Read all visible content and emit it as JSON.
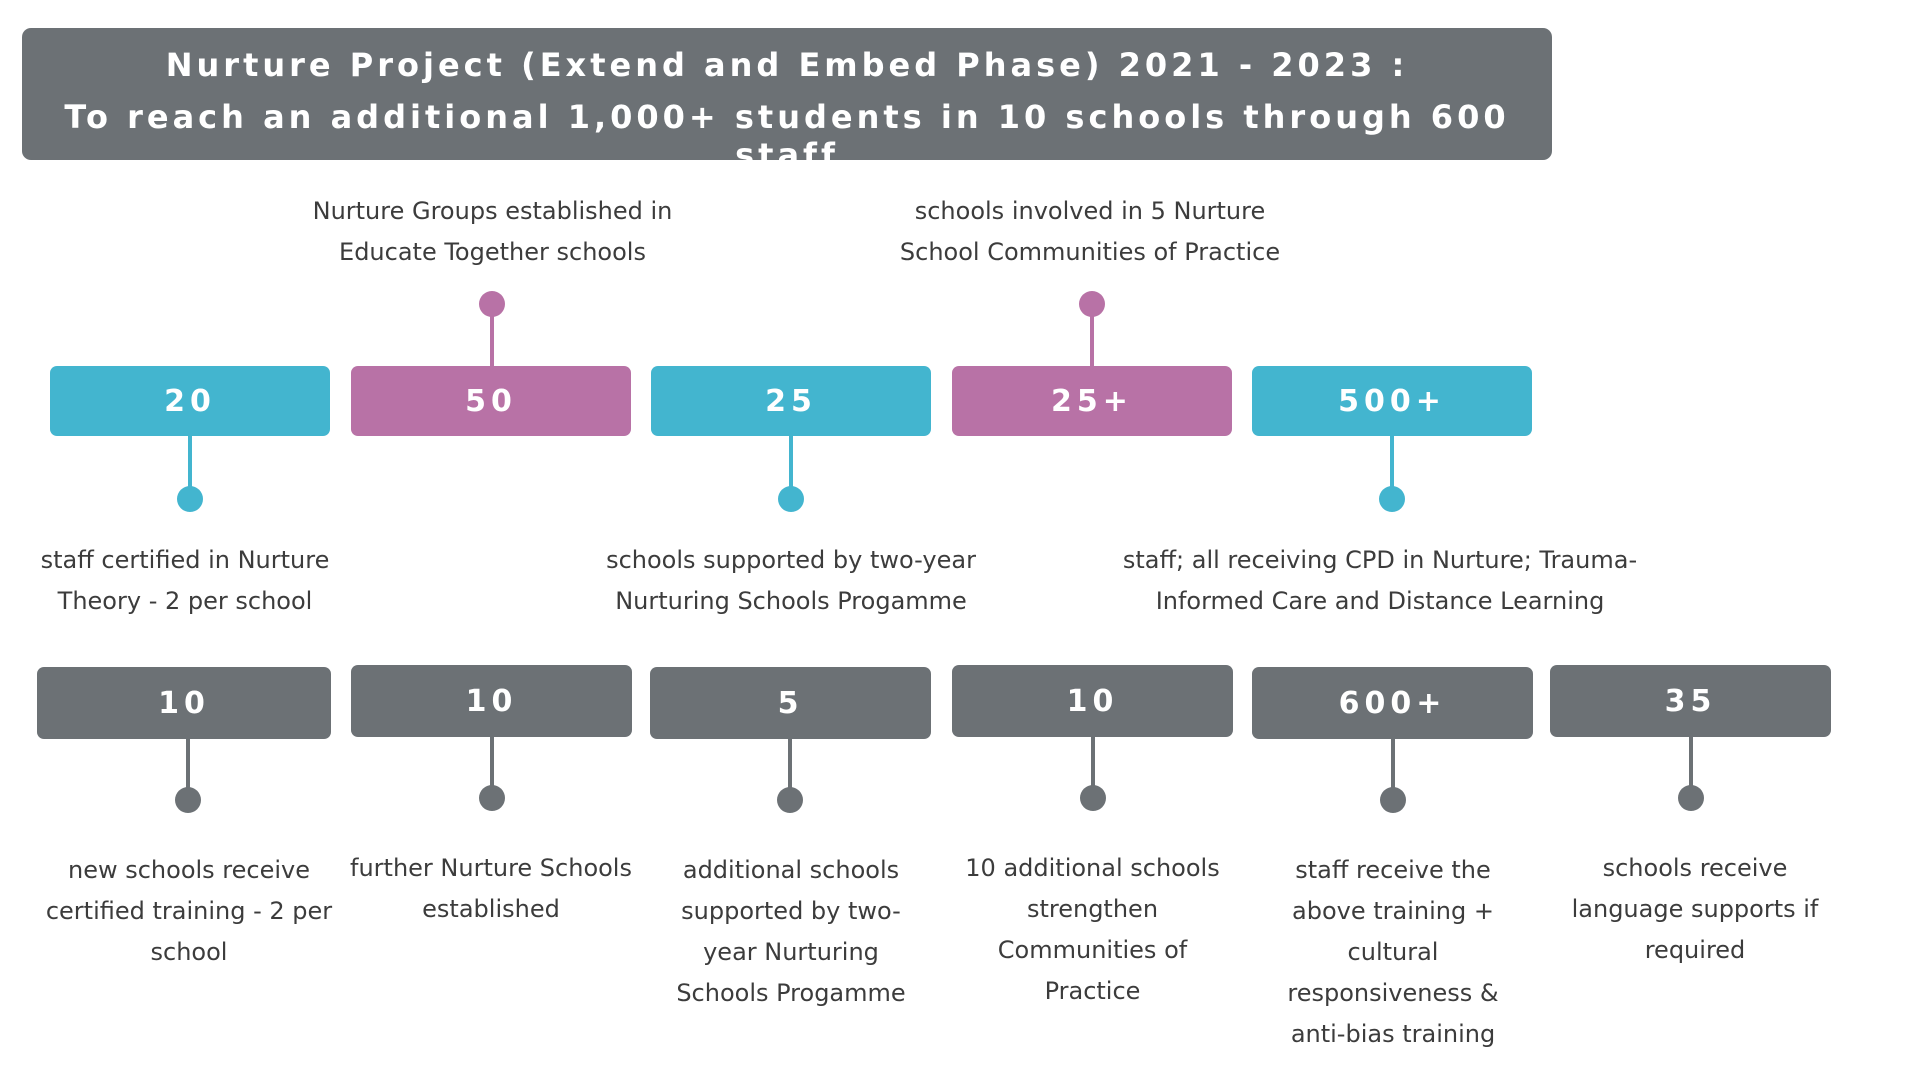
{
  "header": {
    "line1": "Nurture Project (Extend and Embed Phase) 2021 - 2023 :",
    "line2": "To reach an additional 1,000+ students in 10 schools through 600 staff"
  },
  "colors": {
    "teal": "#43b5cf",
    "pink": "#b872a6",
    "grey": "#6c7175"
  },
  "row1": [
    {
      "value": "20",
      "caption": "staff certified in Nurture Theory - 2 per school",
      "color": "teal"
    },
    {
      "value": "50",
      "caption": "Nurture Groups established in Educate Together schools",
      "color": "pink"
    },
    {
      "value": "25",
      "caption": "schools supported by two-year Nurturing Schools Progamme",
      "color": "teal"
    },
    {
      "value": "25+",
      "caption": "schools involved in 5 Nurture School Communities of Practice",
      "color": "pink"
    },
    {
      "value": "500+",
      "caption": "staff; all receiving CPD in Nurture; Trauma-Informed Care and Distance Learning",
      "color": "teal"
    }
  ],
  "row2": [
    {
      "value": "10",
      "caption": "new schools receive certified training - 2 per school"
    },
    {
      "value": "10",
      "caption": "further Nurture Schools established"
    },
    {
      "value": "5",
      "caption": "additional schools supported by two-year Nurturing Schools Progamme"
    },
    {
      "value": "10",
      "caption": "10 additional schools strengthen Communities of Practice"
    },
    {
      "value": "600+",
      "caption": "staff receive the above training + cultural responsiveness & anti-bias training"
    },
    {
      "value": "35",
      "caption": "schools receive language supports if required"
    }
  ]
}
